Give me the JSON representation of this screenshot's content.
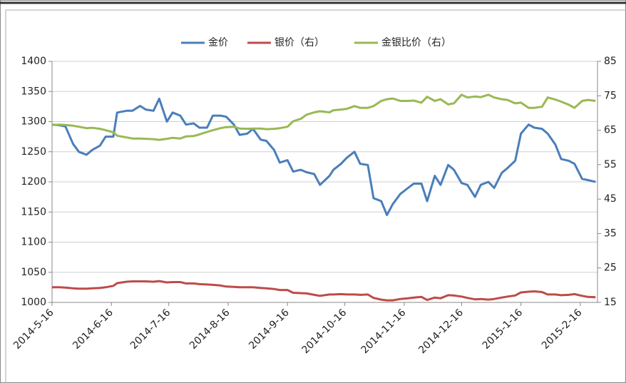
{
  "chart_data": {
    "type": "line",
    "x": [
      "2014-5-16",
      "2014-5-20",
      "2014-5-23",
      "2014-5-27",
      "2014-5-30",
      "2014-6-3",
      "2014-6-6",
      "2014-6-10",
      "2014-6-13",
      "2014-6-17",
      "2014-6-19",
      "2014-6-24",
      "2014-6-27",
      "2014-7-1",
      "2014-7-4",
      "2014-7-8",
      "2014-7-11",
      "2014-7-15",
      "2014-7-18",
      "2014-7-22",
      "2014-7-25",
      "2014-7-29",
      "2014-8-1",
      "2014-8-5",
      "2014-8-8",
      "2014-8-12",
      "2014-8-15",
      "2014-8-19",
      "2014-8-22",
      "2014-8-26",
      "2014-8-29",
      "2014-9-2",
      "2014-9-5",
      "2014-9-9",
      "2014-9-12",
      "2014-9-16",
      "2014-9-19",
      "2014-9-23",
      "2014-9-26",
      "2014-9-30",
      "2014-10-3",
      "2014-10-8",
      "2014-10-10",
      "2014-10-14",
      "2014-10-17",
      "2014-10-21",
      "2014-10-24",
      "2014-10-28",
      "2014-10-31",
      "2014-11-4",
      "2014-11-7",
      "2014-11-10",
      "2014-11-14",
      "2014-11-18",
      "2014-11-21",
      "2014-11-25",
      "2014-11-28",
      "2014-12-2",
      "2014-12-5",
      "2014-12-9",
      "2014-12-12",
      "2014-12-16",
      "2014-12-19",
      "2014-12-23",
      "2014-12-26",
      "2014-12-30",
      "2015-1-2",
      "2015-1-6",
      "2015-1-9",
      "2015-1-13",
      "2015-1-16",
      "2015-1-20",
      "2015-1-23",
      "2015-1-27",
      "2015-1-30",
      "2015-2-3",
      "2015-2-6",
      "2015-2-10",
      "2015-2-13",
      "2015-2-17",
      "2015-2-20",
      "2015-2-24"
    ],
    "series": [
      {
        "name": "金价",
        "color": "#4a7ebb",
        "values": [
          1295,
          1294,
          1292,
          1263,
          1250,
          1245,
          1253,
          1260,
          1275,
          1275,
          1315,
          1318,
          1318,
          1326,
          1320,
          1318,
          1338,
          1300,
          1315,
          1310,
          1295,
          1297,
          1290,
          1290,
          1310,
          1310,
          1308,
          1295,
          1278,
          1280,
          1288,
          1270,
          1268,
          1253,
          1232,
          1236,
          1217,
          1220,
          1216,
          1213,
          1195,
          1210,
          1220,
          1230,
          1240,
          1250,
          1230,
          1228,
          1173,
          1168,
          1145,
          1163,
          1180,
          1190,
          1197,
          1197,
          1168,
          1210,
          1195,
          1228,
          1220,
          1198,
          1195,
          1175,
          1195,
          1200,
          1190,
          1215,
          1223,
          1235,
          1280,
          1295,
          1290,
          1288,
          1280,
          1262,
          1238,
          1235,
          1230,
          1205,
          1203,
          1200
        ]
      },
      {
        "name": "银价（右）",
        "color": "#be4b48",
        "axis": "y2",
        "values": [
          19.4,
          19.4,
          19.3,
          19.1,
          19.0,
          19.0,
          19.1,
          19.2,
          19.4,
          19.8,
          20.6,
          21.0,
          21.1,
          21.1,
          21.1,
          21.0,
          21.2,
          20.8,
          20.9,
          20.9,
          20.5,
          20.5,
          20.3,
          20.2,
          20.1,
          19.9,
          19.6,
          19.5,
          19.4,
          19.4,
          19.4,
          19.2,
          19.1,
          18.9,
          18.6,
          18.6,
          17.8,
          17.7,
          17.6,
          17.2,
          16.9,
          17.3,
          17.3,
          17.4,
          17.3,
          17.3,
          17.2,
          17.3,
          16.3,
          15.8,
          15.6,
          15.6,
          16.0,
          16.2,
          16.4,
          16.6,
          15.7,
          16.4,
          16.2,
          17.1,
          17.0,
          16.7,
          16.3,
          15.9,
          16.0,
          15.8,
          16.0,
          16.4,
          16.7,
          17.0,
          17.9,
          18.1,
          18.2,
          18.0,
          17.3,
          17.3,
          17.1,
          17.2,
          17.4,
          16.9,
          16.6,
          16.5
        ]
      },
      {
        "name": "金银比价（右）",
        "color": "#98b954",
        "axis": "y2",
        "values": [
          66.5,
          66.6,
          66.5,
          66.3,
          66.0,
          65.6,
          65.7,
          65.4,
          65.0,
          64.4,
          63.4,
          62.9,
          62.6,
          62.6,
          62.5,
          62.4,
          62.2,
          62.5,
          62.8,
          62.6,
          63.2,
          63.3,
          63.8,
          64.5,
          65.0,
          65.6,
          65.9,
          66.0,
          65.5,
          65.4,
          65.5,
          65.5,
          65.3,
          65.4,
          65.6,
          66.0,
          67.6,
          68.3,
          69.5,
          70.2,
          70.5,
          70.2,
          70.8,
          71.0,
          71.2,
          72.0,
          71.5,
          71.5,
          72.0,
          73.5,
          74.0,
          74.2,
          73.5,
          73.5,
          73.6,
          73.0,
          74.7,
          73.5,
          74.0,
          72.5,
          72.8,
          75.3,
          74.5,
          74.8,
          74.6,
          75.3,
          74.5,
          74.0,
          73.8,
          72.8,
          73.0,
          71.5,
          71.5,
          71.8,
          74.5,
          73.9,
          73.3,
          72.4,
          71.5,
          73.5,
          73.8,
          73.5
        ]
      }
    ],
    "xlim": [
      "2014-5-16",
      "2015-2-25"
    ],
    "xticks": [
      "2014-5-16",
      "2014-6-16",
      "2014-7-16",
      "2014-8-16",
      "2014-9-16",
      "2014-10-16",
      "2014-11-16",
      "2014-12-16",
      "2015-1-16",
      "2015-2-16"
    ],
    "ylim": [
      1000,
      1400
    ],
    "yticks": [
      1000,
      1050,
      1100,
      1150,
      1200,
      1250,
      1300,
      1350,
      1400
    ],
    "y2lim": [
      15,
      85
    ],
    "y2ticks": [
      15,
      25,
      35,
      45,
      55,
      65,
      75,
      85
    ],
    "grid": true,
    "legend": "top"
  }
}
